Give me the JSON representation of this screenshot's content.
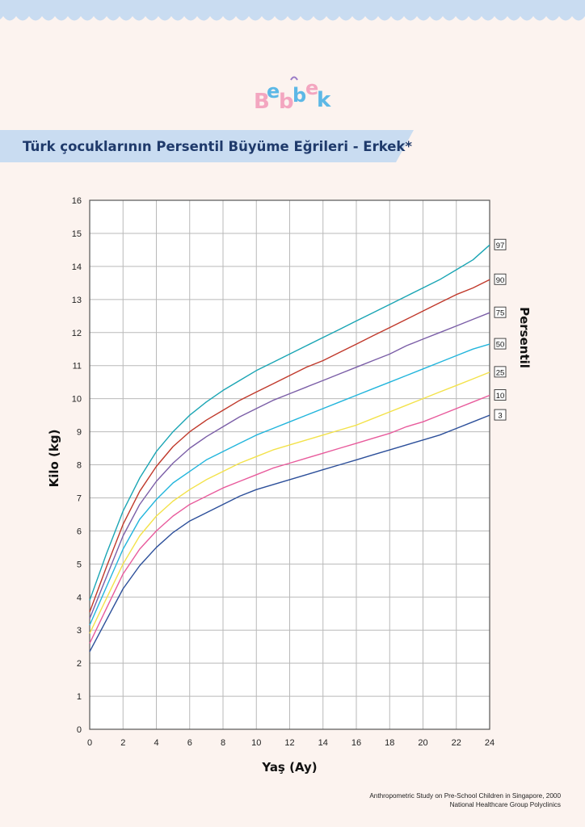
{
  "brand": {
    "logo_letters": [
      "B",
      "e",
      "b",
      "b",
      "e",
      "k"
    ],
    "logo_colors": [
      "#f3a6c0",
      "#5cb8e6",
      "#f3a6c0",
      "#5cb8e6",
      "#f3a6c0",
      "#5cb8e6"
    ]
  },
  "header": {
    "title": "Türk çocuklarının Persentil Büyüme Eğrileri - Erkek*"
  },
  "colors": {
    "background": "#fcf3ef",
    "banner": "#c9dcf1",
    "wave": "#c9dcf1",
    "title_text": "#1f3a6b"
  },
  "chart_data": {
    "type": "line",
    "title": "",
    "xlabel": "Yaş (Ay)",
    "ylabel": "Kilo (kg)",
    "right_label": "Persentil",
    "xlim": [
      0,
      24
    ],
    "ylim": [
      0,
      16
    ],
    "x_ticks": [
      0,
      2,
      4,
      6,
      8,
      10,
      12,
      14,
      16,
      18,
      20,
      22,
      24
    ],
    "y_ticks": [
      0,
      1,
      2,
      3,
      4,
      5,
      6,
      7,
      8,
      9,
      10,
      11,
      12,
      13,
      14,
      15,
      16
    ],
    "grid": true,
    "x": [
      0,
      1,
      2,
      3,
      4,
      5,
      6,
      7,
      8,
      9,
      10,
      11,
      12,
      13,
      14,
      15,
      16,
      17,
      18,
      19,
      20,
      21,
      22,
      23,
      24
    ],
    "series": [
      {
        "name": "97",
        "color": "#1aa5b4",
        "values": [
          3.9,
          5.3,
          6.6,
          7.6,
          8.4,
          9.0,
          9.5,
          9.9,
          10.25,
          10.55,
          10.85,
          11.1,
          11.35,
          11.6,
          11.85,
          12.1,
          12.35,
          12.6,
          12.85,
          13.1,
          13.35,
          13.6,
          13.9,
          14.2,
          14.65
        ]
      },
      {
        "name": "90",
        "color": "#c0392b",
        "values": [
          3.55,
          4.9,
          6.2,
          7.2,
          7.95,
          8.55,
          9.0,
          9.35,
          9.65,
          9.95,
          10.2,
          10.45,
          10.7,
          10.95,
          11.15,
          11.4,
          11.65,
          11.9,
          12.15,
          12.4,
          12.65,
          12.9,
          13.15,
          13.35,
          13.6
        ]
      },
      {
        "name": "75",
        "color": "#7b5ea7",
        "values": [
          3.35,
          4.6,
          5.85,
          6.8,
          7.5,
          8.05,
          8.5,
          8.85,
          9.15,
          9.45,
          9.7,
          9.95,
          10.15,
          10.35,
          10.55,
          10.75,
          10.95,
          11.15,
          11.35,
          11.6,
          11.8,
          12.0,
          12.2,
          12.4,
          12.6
        ]
      },
      {
        "name": "50",
        "color": "#22b5dc",
        "values": [
          3.15,
          4.3,
          5.45,
          6.35,
          6.95,
          7.45,
          7.8,
          8.15,
          8.4,
          8.65,
          8.9,
          9.1,
          9.3,
          9.5,
          9.7,
          9.9,
          10.1,
          10.3,
          10.5,
          10.7,
          10.9,
          11.1,
          11.3,
          11.5,
          11.65
        ]
      },
      {
        "name": "25",
        "color": "#f3e24a",
        "values": [
          2.9,
          3.95,
          5.0,
          5.85,
          6.45,
          6.9,
          7.25,
          7.55,
          7.8,
          8.05,
          8.25,
          8.45,
          8.6,
          8.75,
          8.9,
          9.05,
          9.2,
          9.4,
          9.6,
          9.8,
          10.0,
          10.2,
          10.4,
          10.6,
          10.8
        ]
      },
      {
        "name": "10",
        "color": "#e85b9c",
        "values": [
          2.6,
          3.65,
          4.7,
          5.45,
          6.0,
          6.45,
          6.8,
          7.05,
          7.3,
          7.5,
          7.7,
          7.9,
          8.05,
          8.2,
          8.35,
          8.5,
          8.65,
          8.8,
          8.95,
          9.15,
          9.3,
          9.5,
          9.7,
          9.9,
          10.1
        ]
      },
      {
        "name": "3",
        "color": "#2c4f9a",
        "values": [
          2.35,
          3.3,
          4.25,
          4.95,
          5.5,
          5.95,
          6.3,
          6.55,
          6.8,
          7.05,
          7.25,
          7.4,
          7.55,
          7.7,
          7.85,
          8.0,
          8.15,
          8.3,
          8.45,
          8.6,
          8.75,
          8.9,
          9.1,
          9.3,
          9.5
        ]
      }
    ]
  },
  "source": {
    "line1": "Anthropometric Study on Pre-School Children in Singapore, 2000",
    "line2": "National Healthcare Group Polyclinics"
  }
}
